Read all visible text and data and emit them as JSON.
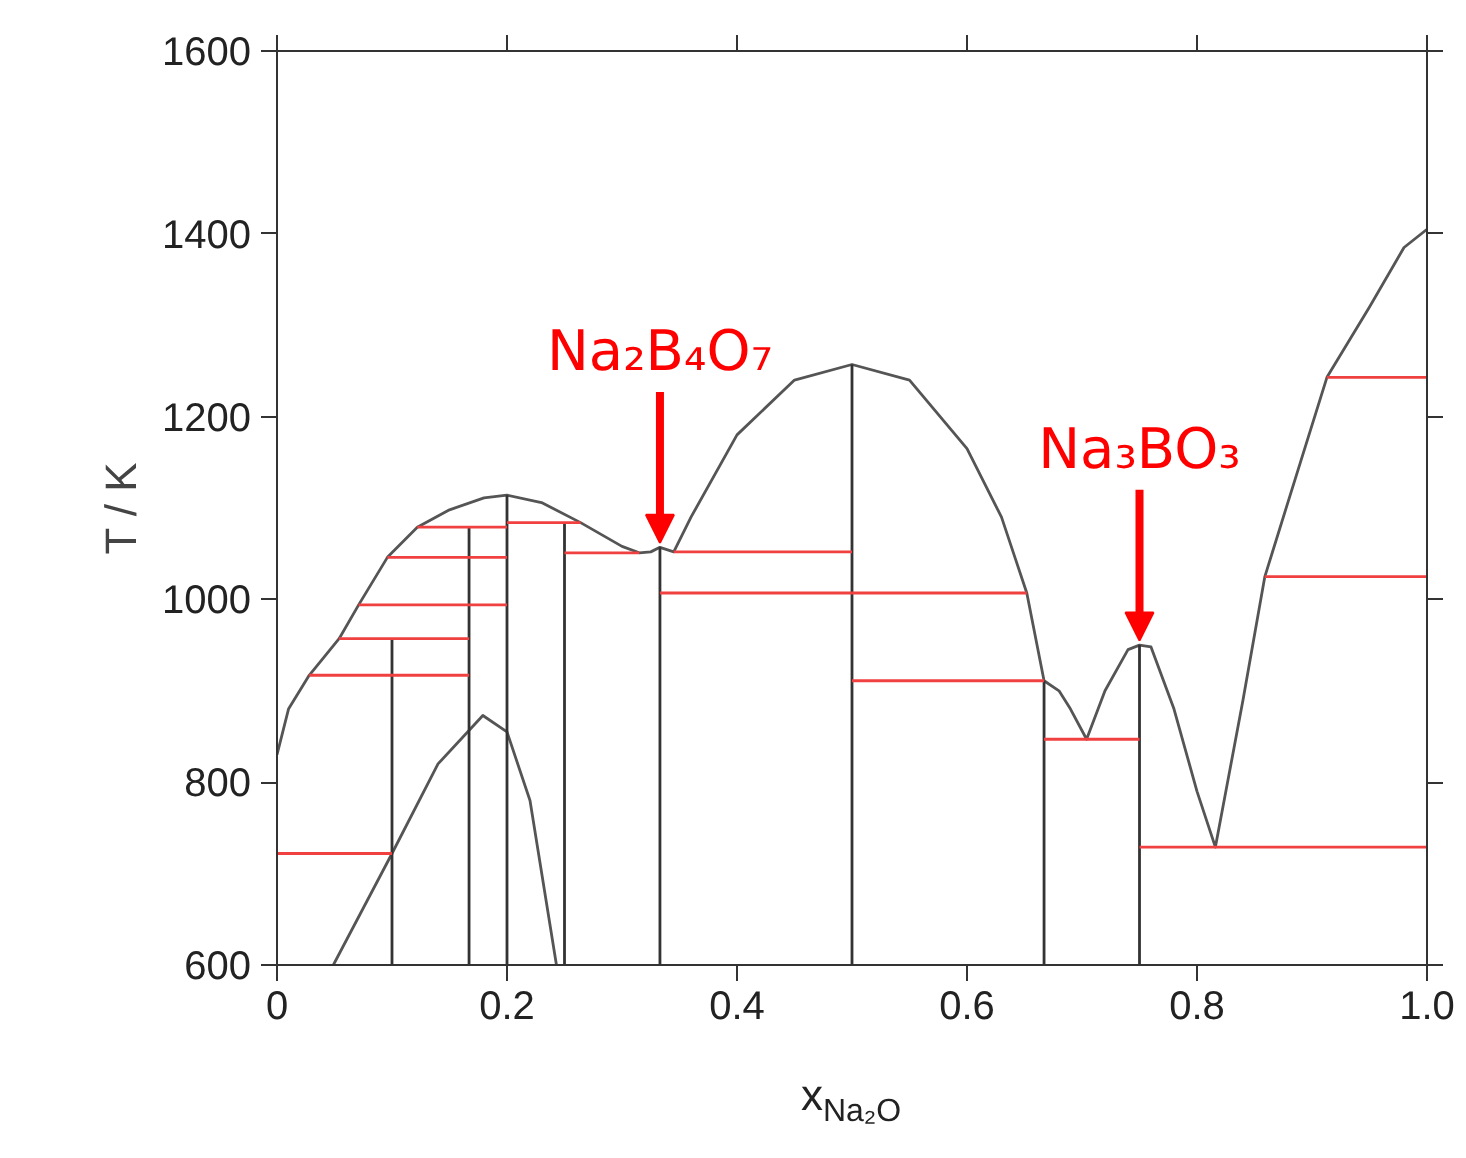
{
  "chart_data": {
    "type": "line",
    "xlabel": "x$_{Na₂O}$",
    "ylabel": "T / K",
    "xlim": [
      0,
      1
    ],
    "xticks": [
      0,
      0.2,
      0.4,
      0.6,
      0.8,
      {
        "value": 1,
        "label": "1.0"
      }
    ],
    "ylim": [
      600,
      1600
    ],
    "yticks": [
      600,
      800,
      1000,
      1200,
      1400,
      1600
    ],
    "grid": false,
    "marker": "none",
    "line_style": "solid",
    "annotations": [
      {
        "text": "Na₂B₄O₇",
        "x": 0.333,
        "y": 1057
      },
      {
        "text": "Na₃BO₃",
        "x": 0.75,
        "y": 950
      }
    ],
    "series": [
      {
        "color": "#555555",
        "x": [
          0,
          0.01,
          0.028,
          0.054,
          0.071,
          0.096,
          0.122,
          0.15,
          0.18,
          0.2,
          0.23,
          0.264,
          0.3,
          0.315,
          0.325,
          0.333,
          0.345,
          0.36,
          0.4,
          0.45,
          0.5,
          0.55,
          0.6,
          0.63,
          0.652,
          0.667,
          0.68,
          0.69,
          0.704,
          0.72,
          0.74,
          0.75,
          0.76,
          0.78,
          0.8,
          0.816,
          0.84,
          0.859,
          0.88,
          0.913,
          0.95,
          0.98,
          1.0
        ],
        "values": [
          830,
          880,
          917,
          957,
          994,
          1046,
          1079,
          1098,
          1111,
          1114,
          1106,
          1084,
          1058,
          1051,
          1052,
          1057,
          1052,
          1090,
          1180,
          1240,
          1257,
          1240,
          1165,
          1090,
          1007,
          911,
          900,
          880,
          847,
          900,
          945,
          950,
          948,
          880,
          790,
          729,
          890,
          1025,
          1110,
          1243,
          1320,
          1385,
          1405
        ]
      },
      {
        "color": "#555555",
        "x": [
          0.049,
          0.1,
          0.14,
          0.179,
          0.2,
          0.22,
          0.243
        ],
        "values": [
          600,
          722,
          820,
          873,
          855,
          780,
          600
        ]
      },
      {
        "color": "#333333",
        "x": [
          0.1,
          0.1
        ],
        "values": [
          600,
          957
        ]
      },
      {
        "color": "#333333",
        "x": [
          0.167,
          0.167
        ],
        "values": [
          600,
          1079
        ]
      },
      {
        "color": "#333333",
        "x": [
          0.2,
          0.2
        ],
        "values": [
          600,
          1114
        ]
      },
      {
        "color": "#333333",
        "x": [
          0.25,
          0.25
        ],
        "values": [
          600,
          1084
        ]
      },
      {
        "color": "#333333",
        "x": [
          0.333,
          0.333
        ],
        "values": [
          600,
          1057
        ]
      },
      {
        "color": "#333333",
        "x": [
          0.5,
          0.5
        ],
        "values": [
          600,
          1257
        ]
      },
      {
        "color": "#333333",
        "x": [
          0.667,
          0.667
        ],
        "values": [
          600,
          911
        ]
      },
      {
        "color": "#333333",
        "x": [
          0.75,
          0.75
        ],
        "values": [
          600,
          950
        ]
      },
      {
        "color": "#f04040",
        "x": [
          0,
          0.1
        ],
        "values": [
          722,
          722
        ]
      },
      {
        "color": "#f04040",
        "x": [
          0.028,
          0.167
        ],
        "values": [
          917,
          917
        ]
      },
      {
        "color": "#f04040",
        "x": [
          0.054,
          0.167
        ],
        "values": [
          957,
          957
        ]
      },
      {
        "color": "#f04040",
        "x": [
          0.071,
          0.2
        ],
        "values": [
          994,
          994
        ]
      },
      {
        "color": "#f04040",
        "x": [
          0.096,
          0.2
        ],
        "values": [
          1046,
          1046
        ]
      },
      {
        "color": "#f04040",
        "x": [
          0.122,
          0.2
        ],
        "values": [
          1079,
          1079
        ]
      },
      {
        "color": "#f04040",
        "x": [
          0.2,
          0.264
        ],
        "values": [
          1084,
          1084
        ]
      },
      {
        "color": "#f04040",
        "x": [
          0.25,
          0.315
        ],
        "values": [
          1051,
          1051
        ]
      },
      {
        "color": "#f04040",
        "x": [
          0.345,
          0.5
        ],
        "values": [
          1052,
          1052
        ]
      },
      {
        "color": "#f04040",
        "x": [
          0.333,
          0.652
        ],
        "values": [
          1007,
          1007
        ]
      },
      {
        "color": "#f04040",
        "x": [
          0.5,
          0.667
        ],
        "values": [
          911,
          911
        ]
      },
      {
        "color": "#f04040",
        "x": [
          0.667,
          0.75
        ],
        "values": [
          847,
          847
        ]
      },
      {
        "color": "#f04040",
        "x": [
          0.75,
          1.0
        ],
        "values": [
          729,
          729
        ]
      },
      {
        "color": "#f04040",
        "x": [
          0.859,
          1.0
        ],
        "values": [
          1025,
          1025
        ]
      },
      {
        "color": "#f04040",
        "x": [
          0.913,
          1.0
        ],
        "values": [
          1243,
          1243
        ]
      }
    ]
  }
}
